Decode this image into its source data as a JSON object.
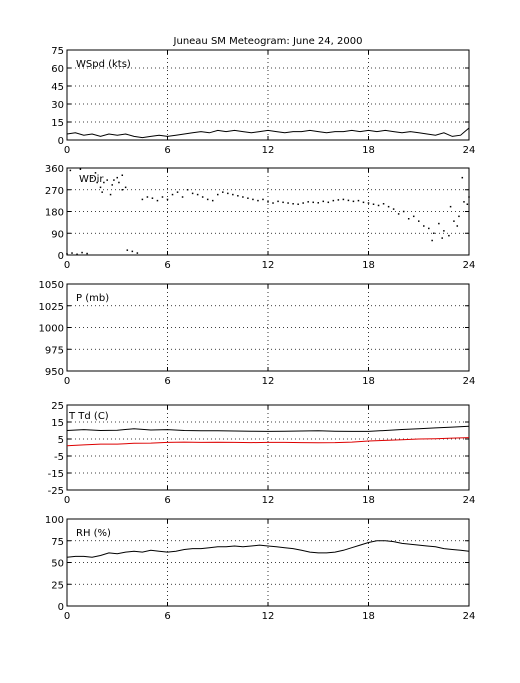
{
  "title": "Juneau SM Meteogram:       June 24, 2000",
  "colors": {
    "axes": "#000000",
    "grid": "#000000",
    "primary": "#000000",
    "dewpoint": "#dd0000",
    "background": "#ffffff"
  },
  "chart_data": [
    {
      "type": "line",
      "label": "WSpd (kts)",
      "xlim": [
        0,
        24
      ],
      "xticks": [
        0,
        6,
        12,
        18,
        24
      ],
      "ylim": [
        0,
        75
      ],
      "yticks": [
        0,
        15,
        30,
        45,
        60,
        75
      ],
      "grid": true,
      "series": [
        {
          "color": "#000000",
          "style": "line",
          "x": [
            0,
            0.5,
            1,
            1.5,
            2,
            2.5,
            3,
            3.5,
            4,
            4.5,
            5,
            5.5,
            6,
            6.5,
            7,
            7.5,
            8,
            8.5,
            9,
            9.5,
            10,
            10.5,
            11,
            11.5,
            12,
            12.5,
            13,
            13.5,
            14,
            14.5,
            15,
            15.5,
            16,
            16.5,
            17,
            17.5,
            18,
            18.5,
            19,
            19.5,
            20,
            20.5,
            21,
            21.5,
            22,
            22.5,
            23,
            23.5,
            24
          ],
          "y": [
            5,
            6,
            4,
            5,
            3,
            5,
            4,
            5,
            3,
            2,
            3,
            4,
            3,
            4,
            5,
            6,
            7,
            6,
            8,
            7,
            8,
            7,
            6,
            7,
            8,
            7,
            6,
            7,
            7,
            8,
            7,
            6,
            7,
            7,
            8,
            7,
            8,
            7,
            8,
            7,
            6,
            7,
            6,
            5,
            4,
            6,
            3,
            4,
            10
          ]
        }
      ]
    },
    {
      "type": "scatter",
      "label": "WDir",
      "xlim": [
        0,
        24
      ],
      "xticks": [
        0,
        6,
        12,
        18,
        24
      ],
      "ylim": [
        0,
        360
      ],
      "yticks": [
        0,
        90,
        180,
        270,
        360
      ],
      "grid": true,
      "series": [
        {
          "color": "#000000",
          "style": "dots",
          "x": [
            0,
            0.3,
            0.6,
            0.9,
            1.2,
            1.5,
            1.8,
            2.1,
            2.4,
            2.7,
            3.0,
            3.3,
            3.6,
            3.9,
            4.2,
            4.5,
            4.8,
            5.1,
            5.4,
            5.7,
            6.0,
            6.3,
            6.6,
            6.9,
            7.2,
            7.5,
            7.8,
            8.1,
            8.4,
            8.7,
            9.0,
            9.3,
            9.6,
            9.9,
            10.2,
            10.5,
            10.8,
            11.1,
            11.4,
            11.7,
            12.0,
            12.3,
            12.6,
            12.9,
            13.2,
            13.5,
            13.8,
            14.1,
            14.4,
            14.7,
            15.0,
            15.3,
            15.6,
            15.9,
            16.2,
            16.5,
            16.8,
            17.1,
            17.4,
            17.7,
            18.0,
            18.3,
            18.6,
            18.9,
            19.2,
            19.5,
            19.8,
            20.1,
            20.4,
            20.7,
            21.0,
            21.3,
            21.6,
            21.9,
            22.2,
            22.5,
            22.8,
            23.1,
            23.4,
            23.7,
            24.0,
            1.7,
            2.0,
            2.6,
            3.1,
            3.5,
            0.2,
            0.8,
            2.2,
            2.8,
            3.3,
            21.8,
            22.4,
            22.9,
            23.3,
            23.6,
            23.9
          ],
          "y": [
            5,
            8,
            3,
            10,
            6,
            320,
            300,
            260,
            310,
            290,
            320,
            330,
            20,
            15,
            8,
            230,
            240,
            235,
            225,
            240,
            230,
            250,
            260,
            240,
            270,
            255,
            250,
            240,
            230,
            225,
            250,
            260,
            255,
            250,
            245,
            240,
            235,
            230,
            225,
            230,
            220,
            215,
            222,
            218,
            215,
            212,
            210,
            215,
            220,
            218,
            216,
            222,
            218,
            225,
            228,
            230,
            226,
            222,
            225,
            218,
            215,
            210,
            205,
            212,
            200,
            190,
            170,
            180,
            150,
            160,
            140,
            120,
            110,
            90,
            130,
            100,
            80,
            140,
            160,
            220,
            240,
            340,
            280,
            250,
            300,
            280,
            350,
            355,
            300,
            310,
            270,
            60,
            70,
            200,
            120,
            320,
            210
          ]
        }
      ]
    },
    {
      "type": "line",
      "label": "P (mb)",
      "xlim": [
        0,
        24
      ],
      "xticks": [
        0,
        6,
        12,
        18,
        24
      ],
      "ylim": [
        950,
        1050
      ],
      "yticks": [
        950,
        975,
        1000,
        1025,
        1050
      ],
      "grid": true,
      "series": []
    },
    {
      "type": "line",
      "label": "T Td (C)",
      "xlim": [
        0,
        24
      ],
      "xticks": [
        0,
        6,
        12,
        18,
        24
      ],
      "ylim": [
        -25,
        25
      ],
      "yticks": [
        -25,
        -15,
        -5,
        5,
        15,
        25
      ],
      "grid": true,
      "series": [
        {
          "color": "#000000",
          "style": "line",
          "x": [
            0,
            1,
            2,
            3,
            4,
            5,
            6,
            7,
            8,
            9,
            10,
            11,
            12,
            13,
            14,
            15,
            16,
            17,
            18,
            19,
            20,
            21,
            22,
            23,
            24
          ],
          "y": [
            10,
            10.5,
            10,
            10.2,
            11,
            10.3,
            10.5,
            10,
            9.8,
            9.9,
            9.7,
            9.6,
            9.5,
            9.6,
            9.7,
            9.9,
            9.6,
            9.5,
            9.5,
            10,
            10.6,
            11,
            11.5,
            12,
            12.5
          ]
        },
        {
          "color": "#dd0000",
          "style": "line",
          "x": [
            0,
            1,
            2,
            3,
            4,
            5,
            6,
            7,
            8,
            9,
            10,
            11,
            12,
            13,
            14,
            15,
            16,
            17,
            18,
            19,
            20,
            21,
            22,
            23,
            24
          ],
          "y": [
            1,
            1.5,
            2,
            2,
            2.5,
            2.6,
            3,
            3.2,
            3,
            3.1,
            3,
            2.9,
            3,
            3,
            2.9,
            2.8,
            2.9,
            3.2,
            3.8,
            4.2,
            4.6,
            5,
            5.2,
            5.5,
            5.8
          ]
        }
      ]
    },
    {
      "type": "line",
      "label": "RH (%)",
      "xlim": [
        0,
        24
      ],
      "xticks": [
        0,
        6,
        12,
        18,
        24
      ],
      "ylim": [
        0,
        100
      ],
      "yticks": [
        0,
        25,
        50,
        75,
        100
      ],
      "grid": true,
      "series": [
        {
          "color": "#000000",
          "style": "line",
          "x": [
            0,
            0.5,
            1,
            1.5,
            2,
            2.5,
            3,
            3.5,
            4,
            4.5,
            5,
            5.5,
            6,
            6.5,
            7,
            7.5,
            8,
            8.5,
            9,
            9.5,
            10,
            10.5,
            11,
            11.5,
            12,
            12.5,
            13,
            13.5,
            14,
            14.5,
            15,
            15.5,
            16,
            16.5,
            17,
            17.5,
            18,
            18.5,
            19,
            19.5,
            20,
            20.5,
            21,
            21.5,
            22,
            22.5,
            23,
            23.5,
            24
          ],
          "y": [
            56,
            57,
            57,
            56,
            58,
            61,
            60,
            62,
            63,
            62,
            64,
            63,
            62,
            63,
            65,
            66,
            66,
            67,
            68,
            68,
            69,
            68,
            69,
            70,
            69,
            68,
            67,
            66,
            64,
            62,
            61,
            61,
            62,
            64,
            67,
            70,
            73,
            75,
            75,
            74,
            72,
            71,
            70,
            69,
            68,
            66,
            65,
            64,
            63
          ]
        }
      ]
    }
  ]
}
